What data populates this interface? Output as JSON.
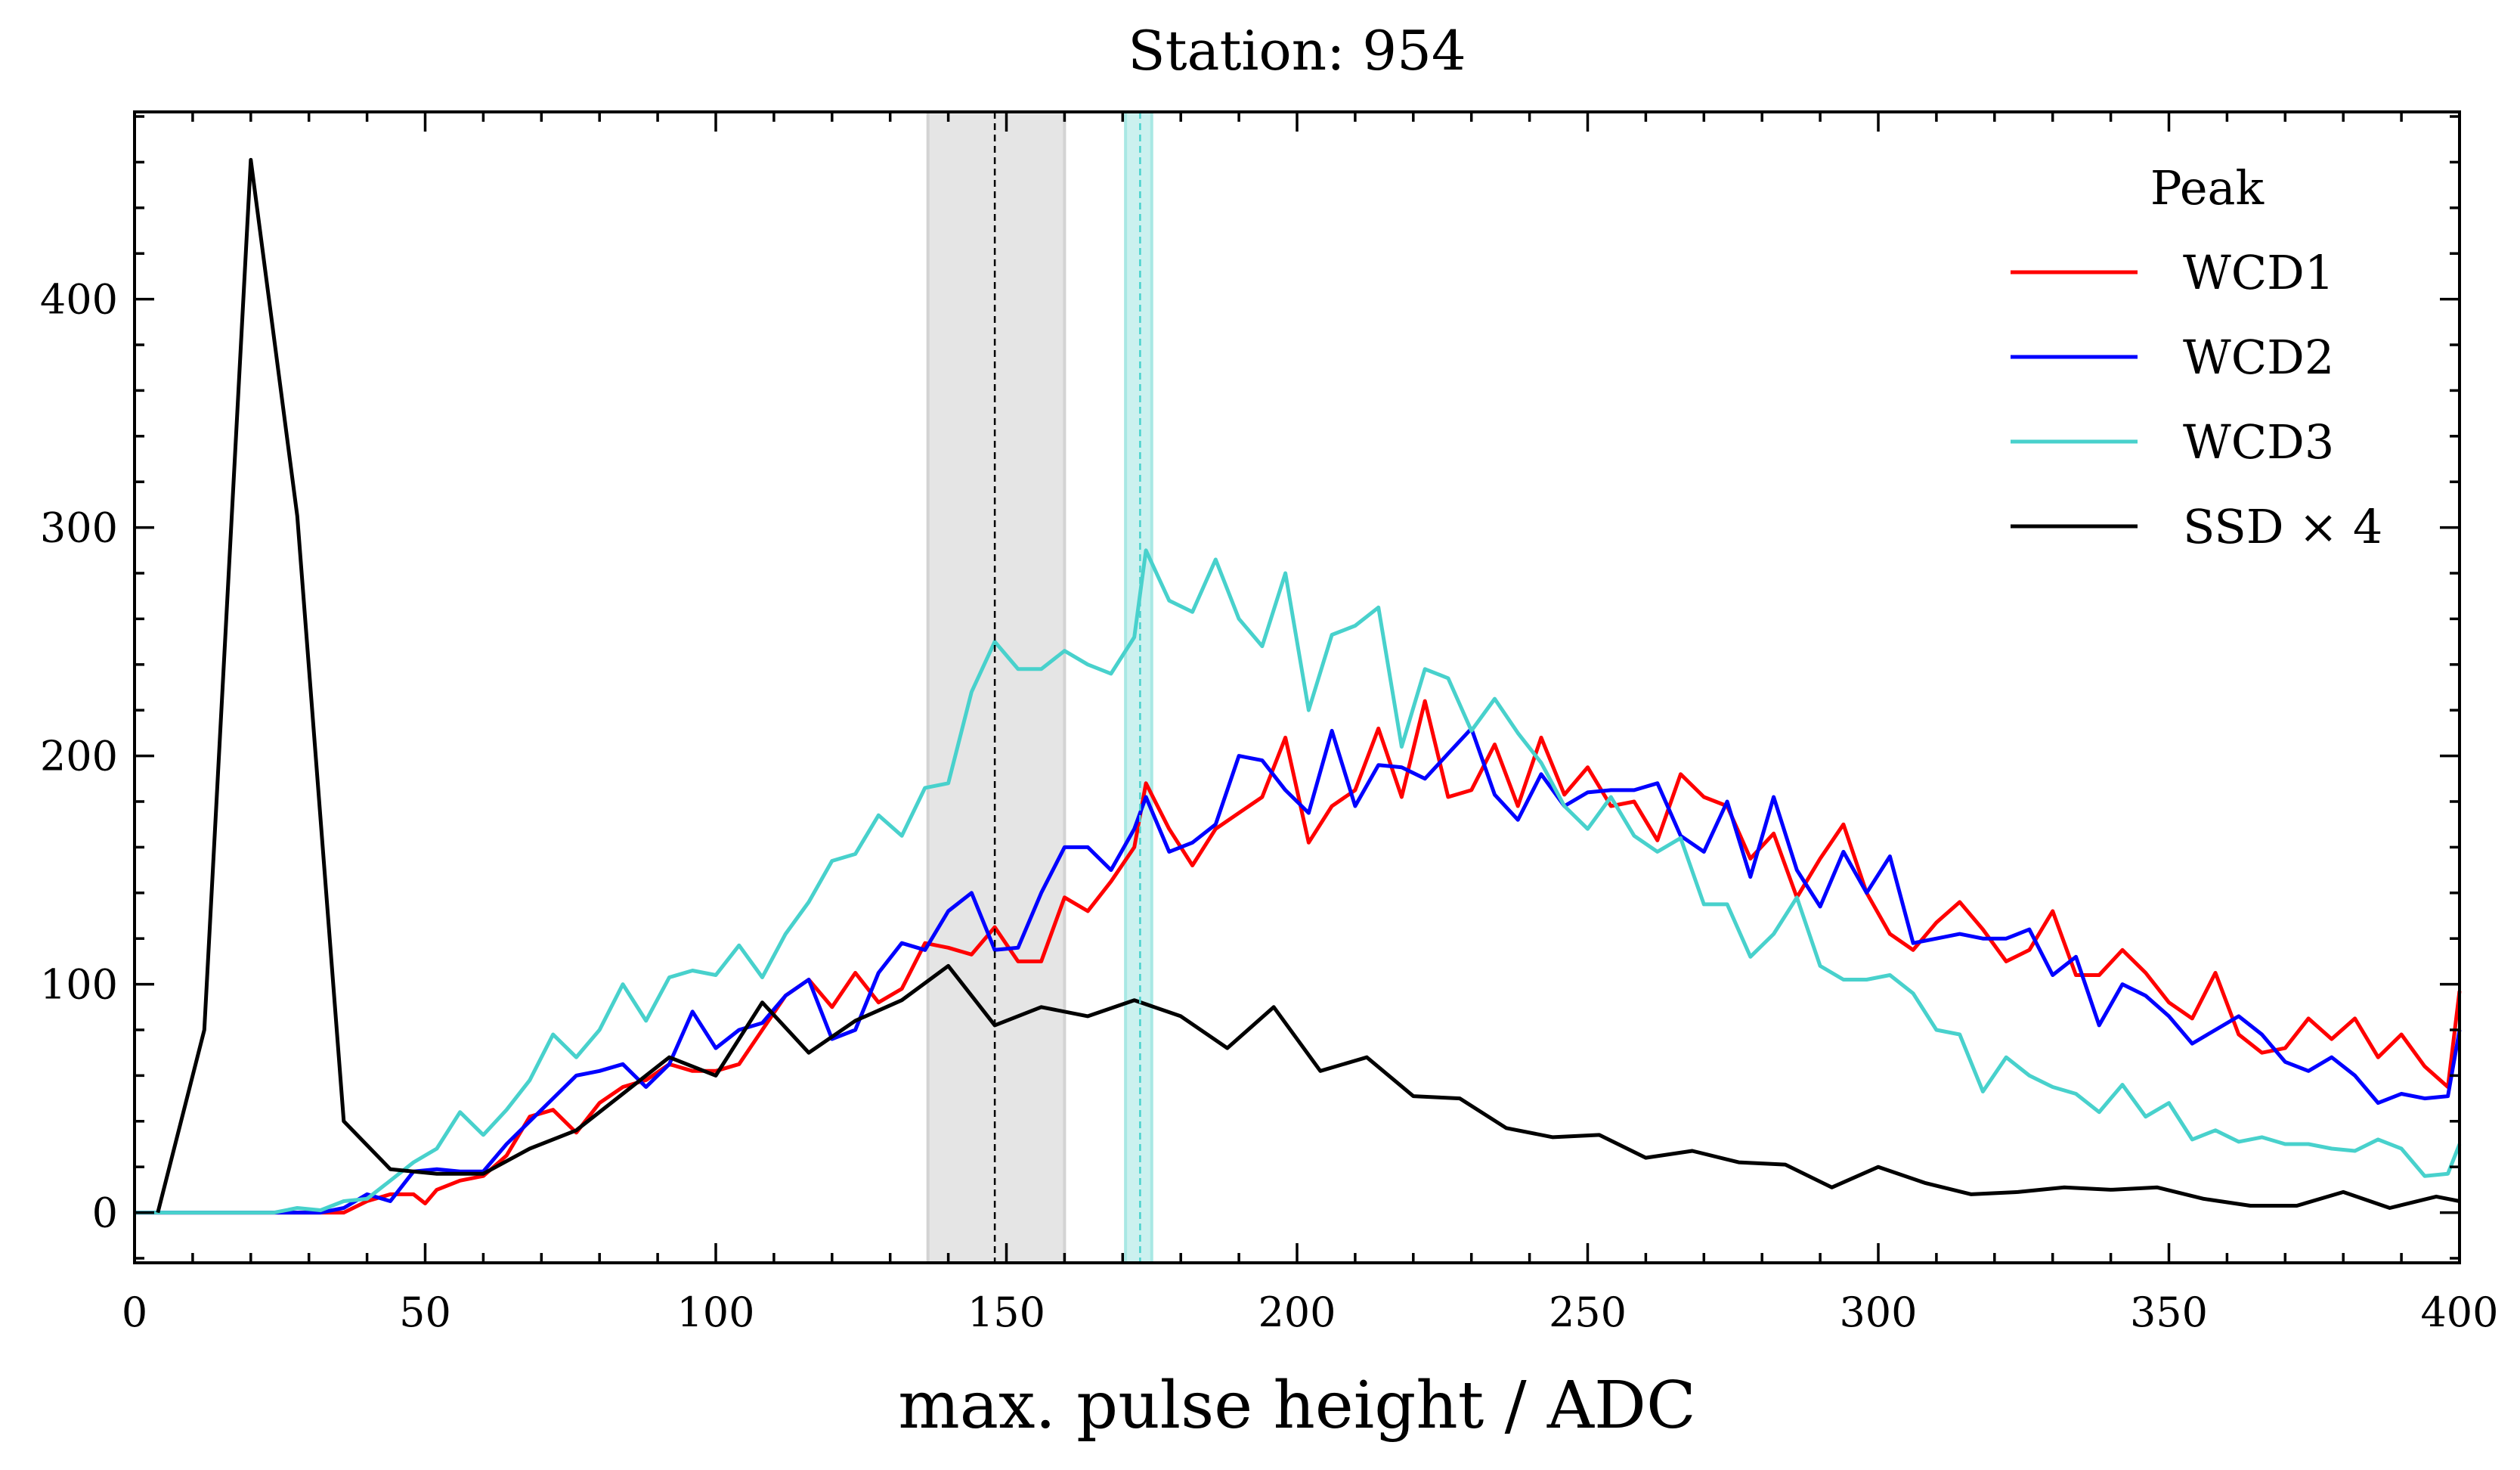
{
  "chart_data": {
    "type": "line",
    "title": "Station: 954",
    "xlabel": "max. pulse height / ADC",
    "ylabel": "",
    "xlim": [
      0,
      400
    ],
    "ylim": [
      -22,
      482
    ],
    "xticks": [
      0,
      50,
      100,
      150,
      200,
      250,
      300,
      350,
      400
    ],
    "yticks": [
      0,
      100,
      200,
      300,
      400
    ],
    "grid": false,
    "legend": {
      "title": "Peak",
      "placement": "top-right"
    },
    "series": [
      {
        "name": "WCD1",
        "color": "#ff0000",
        "x": [
          0,
          4,
          8,
          12,
          16,
          20,
          24,
          28,
          32,
          36,
          40,
          44,
          48,
          50,
          52,
          56,
          60,
          64,
          68,
          72,
          76,
          80,
          84,
          88,
          92,
          96,
          100,
          104,
          108,
          112,
          116,
          120,
          124,
          128,
          132,
          136,
          140,
          144,
          148,
          152,
          156,
          160,
          164,
          168,
          172,
          174,
          178,
          182,
          186,
          190,
          194,
          198,
          202,
          206,
          210,
          214,
          218,
          222,
          226,
          230,
          234,
          238,
          242,
          246,
          250,
          254,
          258,
          262,
          266,
          270,
          274,
          278,
          282,
          286,
          290,
          294,
          298,
          302,
          306,
          310,
          314,
          318,
          322,
          326,
          330,
          334,
          338,
          342,
          346,
          350,
          354,
          358,
          362,
          366,
          370,
          374,
          378,
          382,
          386,
          390,
          394,
          398,
          400
        ],
        "y": [
          0,
          0,
          0,
          0,
          0,
          0,
          0,
          0,
          0,
          0,
          5,
          8,
          8,
          4,
          10,
          14,
          16,
          25,
          42,
          45,
          35,
          48,
          55,
          58,
          65,
          62,
          62,
          65,
          80,
          95,
          102,
          90,
          105,
          92,
          98,
          118,
          116,
          113,
          125,
          110,
          110,
          138,
          132,
          145,
          160,
          188,
          168,
          152,
          168,
          175,
          182,
          208,
          162,
          178,
          185,
          212,
          182,
          224,
          182,
          185,
          205,
          178,
          208,
          183,
          195,
          178,
          180,
          163,
          192,
          182,
          178,
          155,
          166,
          138,
          155,
          170,
          140,
          122,
          115,
          127,
          136,
          124,
          110,
          115,
          132,
          104,
          104,
          115,
          105,
          92,
          85,
          105,
          78,
          70,
          72,
          85,
          76,
          85,
          68,
          78,
          64,
          55,
          97
        ]
      },
      {
        "name": "WCD2",
        "color": "#0000ff",
        "x": [
          0,
          4,
          8,
          12,
          16,
          20,
          24,
          28,
          32,
          36,
          40,
          44,
          48,
          52,
          56,
          60,
          64,
          68,
          72,
          76,
          80,
          84,
          88,
          92,
          96,
          100,
          104,
          108,
          112,
          116,
          120,
          124,
          128,
          132,
          136,
          140,
          144,
          148,
          152,
          156,
          160,
          164,
          168,
          172,
          174,
          178,
          182,
          186,
          190,
          194,
          198,
          202,
          206,
          210,
          214,
          218,
          222,
          226,
          230,
          234,
          238,
          242,
          246,
          250,
          254,
          258,
          262,
          266,
          270,
          274,
          278,
          282,
          286,
          290,
          294,
          298,
          302,
          306,
          310,
          314,
          318,
          322,
          326,
          330,
          334,
          338,
          342,
          346,
          350,
          354,
          358,
          362,
          366,
          370,
          374,
          378,
          382,
          386,
          390,
          394,
          398,
          400
        ],
        "y": [
          0,
          0,
          0,
          0,
          0,
          0,
          0,
          0,
          0,
          2,
          8,
          5,
          18,
          19,
          18,
          18,
          30,
          40,
          50,
          60,
          62,
          65,
          55,
          65,
          88,
          72,
          80,
          83,
          95,
          102,
          76,
          80,
          105,
          118,
          115,
          132,
          140,
          115,
          116,
          140,
          160,
          160,
          150,
          168,
          182,
          158,
          162,
          170,
          200,
          198,
          185,
          175,
          211,
          178,
          196,
          195,
          190,
          201,
          212,
          183,
          172,
          192,
          178,
          184,
          185,
          185,
          188,
          165,
          158,
          180,
          147,
          182,
          150,
          134,
          158,
          140,
          156,
          118,
          120,
          122,
          120,
          120,
          124,
          104,
          112,
          82,
          100,
          95,
          86,
          74,
          80,
          86,
          78,
          66,
          62,
          68,
          60,
          48,
          52,
          50,
          51,
          80
        ]
      },
      {
        "name": "WCD3",
        "color": "#48d1cc",
        "x": [
          0,
          4,
          8,
          12,
          16,
          20,
          24,
          28,
          32,
          36,
          40,
          44,
          48,
          52,
          56,
          60,
          64,
          68,
          72,
          76,
          80,
          84,
          88,
          92,
          96,
          100,
          104,
          108,
          112,
          116,
          120,
          124,
          128,
          132,
          136,
          140,
          144,
          148,
          152,
          156,
          160,
          164,
          168,
          172,
          174,
          178,
          182,
          186,
          190,
          194,
          198,
          202,
          206,
          210,
          214,
          218,
          222,
          226,
          230,
          234,
          238,
          242,
          246,
          250,
          254,
          258,
          262,
          266,
          270,
          274,
          278,
          282,
          286,
          290,
          294,
          298,
          302,
          306,
          310,
          314,
          318,
          322,
          326,
          330,
          334,
          338,
          342,
          346,
          350,
          354,
          358,
          362,
          366,
          370,
          374,
          378,
          382,
          386,
          390,
          394,
          398,
          400
        ],
        "y": [
          0,
          0,
          0,
          0,
          0,
          0,
          0,
          2,
          1,
          5,
          6,
          14,
          22,
          28,
          44,
          34,
          45,
          58,
          78,
          68,
          80,
          100,
          84,
          103,
          106,
          104,
          117,
          103,
          122,
          136,
          154,
          157,
          174,
          165,
          186,
          188,
          228,
          250,
          238,
          238,
          246,
          240,
          236,
          252,
          290,
          268,
          263,
          286,
          260,
          248,
          280,
          220,
          253,
          257,
          265,
          204,
          238,
          234,
          211,
          225,
          210,
          197,
          178,
          168,
          182,
          165,
          158,
          164,
          135,
          135,
          112,
          122,
          138,
          108,
          102,
          102,
          104,
          96,
          80,
          78,
          53,
          68,
          60,
          55,
          52,
          44,
          56,
          42,
          48,
          32,
          36,
          31,
          33,
          30,
          30,
          28,
          27,
          32,
          28,
          16,
          17,
          30
        ]
      },
      {
        "name": "SSD × 4",
        "color": "#000000",
        "x": [
          4,
          12,
          20,
          28,
          36,
          44,
          52,
          60,
          68,
          76,
          84,
          92,
          100,
          108,
          116,
          124,
          132,
          140,
          148,
          156,
          164,
          172,
          180,
          188,
          196,
          204,
          212,
          220,
          228,
          236,
          244,
          252,
          260,
          268,
          276,
          284,
          292,
          300,
          308,
          316,
          324,
          332,
          340,
          348,
          356,
          364,
          372,
          380,
          388,
          396,
          400
        ],
        "y": [
          0,
          80,
          461,
          305,
          40,
          19,
          17,
          17,
          28,
          36,
          52,
          68,
          60,
          92,
          70,
          84,
          93,
          108,
          82,
          90,
          86,
          93,
          86,
          72,
          90,
          62,
          68,
          51,
          50,
          37,
          33,
          34,
          24,
          27,
          22,
          21,
          11,
          20,
          13,
          8,
          9,
          11,
          10,
          11,
          6,
          3,
          3,
          9,
          2,
          7,
          5
        ]
      }
    ],
    "vertical_markers": [
      {
        "x": 148,
        "band": [
          136.5,
          160
        ],
        "color": "#000000",
        "band_color": "#d3d3d3"
      },
      {
        "x": 173,
        "band": [
          170.5,
          175
        ],
        "color": "#48d1cc",
        "band_color": "#a8e8e4"
      }
    ]
  }
}
